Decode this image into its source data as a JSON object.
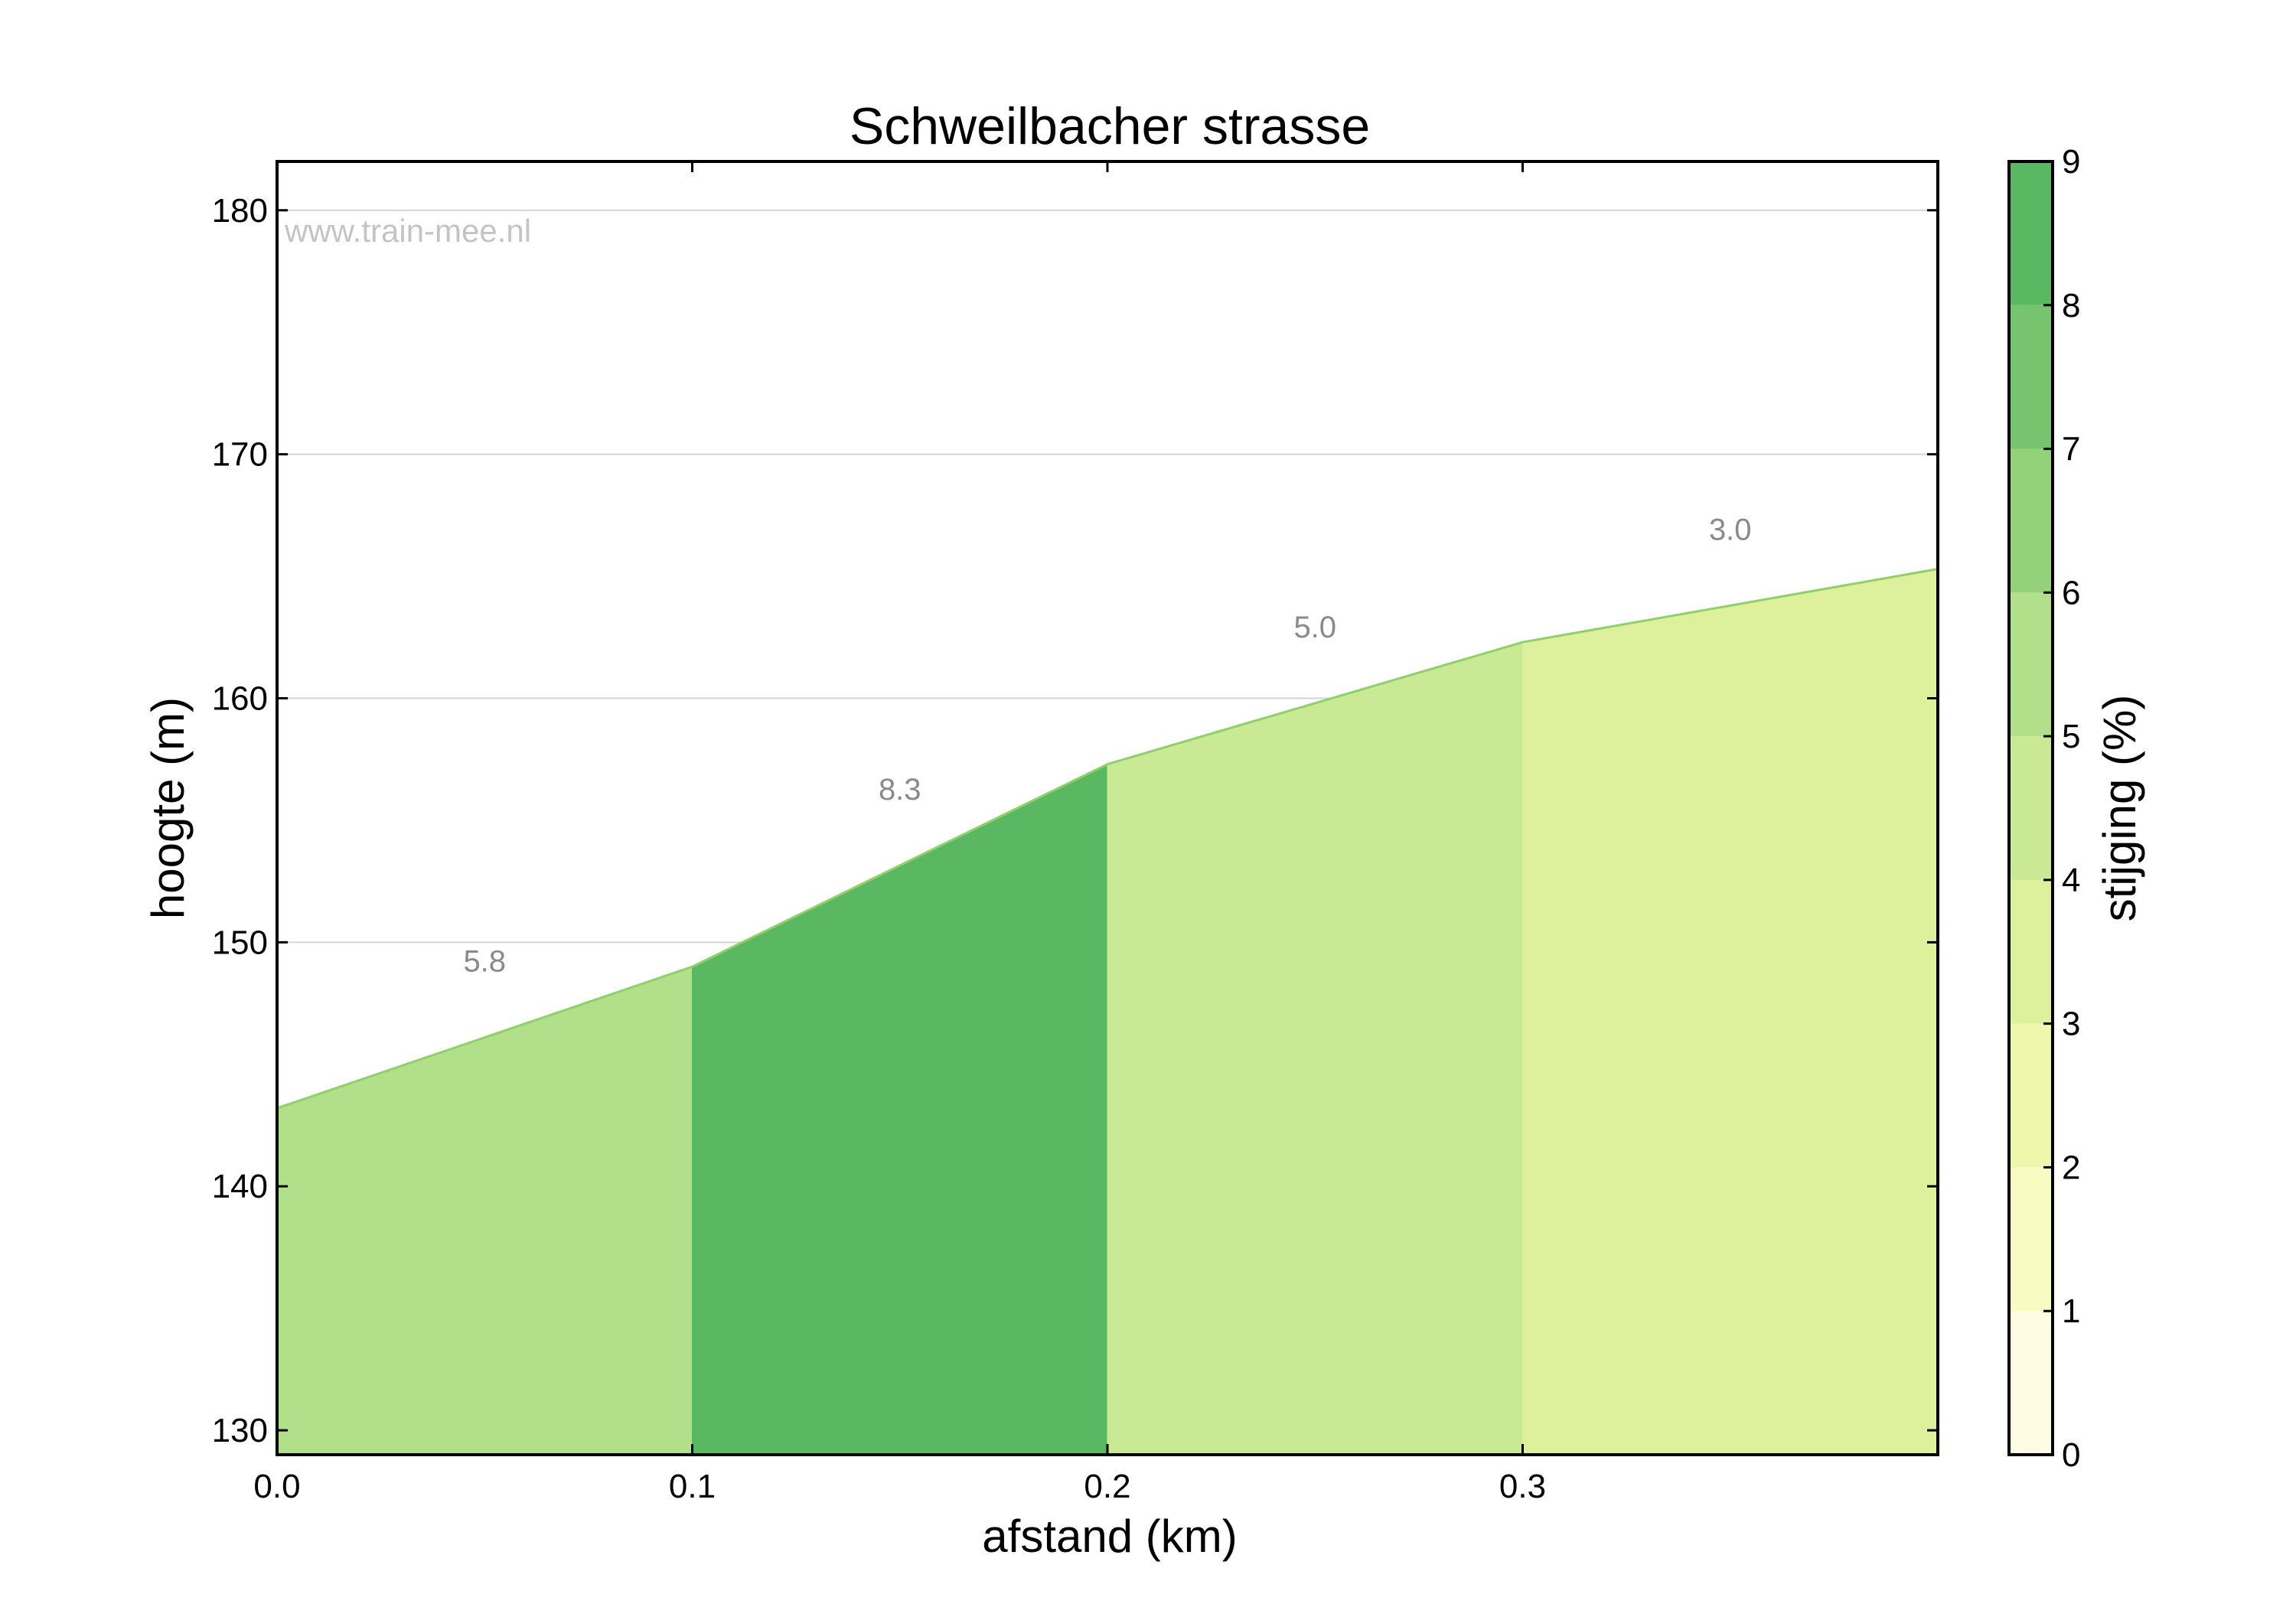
{
  "chart_data": {
    "type": "area",
    "title": "Schweilbacher strasse",
    "xlabel": "afstand (km)",
    "ylabel": "hoogte (m)",
    "watermark": "www.train-mee.nl",
    "xlim": [
      0.0,
      0.4
    ],
    "ylim": [
      129,
      182
    ],
    "xticks": [
      "0.0",
      "0.1",
      "0.2",
      "0.3"
    ],
    "yticks": [
      "130",
      "140",
      "150",
      "160",
      "170",
      "180"
    ],
    "grid": true,
    "profile": {
      "x": [
        0.0,
        0.1,
        0.2,
        0.3,
        0.4
      ],
      "y": [
        143.2,
        149.0,
        157.3,
        162.3,
        165.3
      ]
    },
    "segments": [
      {
        "x_start": 0.0,
        "x_end": 0.1,
        "gradient": 5.8,
        "label": "5.8",
        "color": "#b2df8a"
      },
      {
        "x_start": 0.1,
        "x_end": 0.2,
        "gradient": 8.3,
        "label": "8.3",
        "color": "#5bb862"
      },
      {
        "x_start": 0.2,
        "x_end": 0.3,
        "gradient": 5.0,
        "label": "5.0",
        "color": "#c9e995"
      },
      {
        "x_start": 0.3,
        "x_end": 0.4,
        "gradient": 3.0,
        "label": "3.0",
        "color": "#ddf09c"
      }
    ],
    "colorbar": {
      "label": "stijging (%)",
      "range": [
        0,
        9
      ],
      "ticks": [
        "0",
        "1",
        "2",
        "3",
        "4",
        "5",
        "6",
        "7",
        "8",
        "9"
      ],
      "colors": [
        "#fdfbe1",
        "#f8fcc3",
        "#eef8ad",
        "#ddf09c",
        "#c9e995",
        "#b2df8a",
        "#94d27a",
        "#76c56e",
        "#5bb862"
      ]
    }
  }
}
